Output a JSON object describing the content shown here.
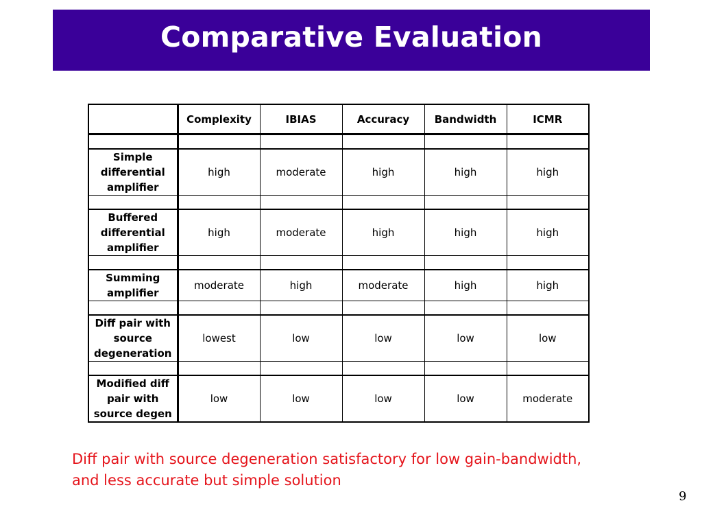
{
  "slide": {
    "title": "Comparative Evaluation",
    "page_number": "9",
    "conclusion_line1": "Diff pair with source degeneration satisfactory for low gain-bandwidth,",
    "conclusion_line2": "and less accurate but simple solution"
  },
  "table": {
    "headers": [
      "",
      "Complexity",
      "IBIAS",
      "Accuracy",
      "Bandwidth",
      "ICMR"
    ],
    "rows": [
      {
        "label_lines": [
          "Simple",
          "differential",
          "amplifier"
        ],
        "values": [
          "high",
          "moderate",
          "high",
          "high",
          "high"
        ]
      },
      {
        "label_lines": [
          "Buffered",
          "differential",
          "amplifier"
        ],
        "values": [
          "high",
          "moderate",
          "high",
          "high",
          "high"
        ]
      },
      {
        "label_lines": [
          "Summing",
          "amplifier"
        ],
        "values": [
          "moderate",
          "high",
          "moderate",
          "high",
          "high"
        ]
      },
      {
        "label_lines": [
          "Diff pair with",
          "source",
          "degeneration"
        ],
        "values": [
          "lowest",
          "low",
          "low",
          "low",
          "low"
        ]
      },
      {
        "label_lines": [
          "Modified diff",
          "pair with",
          "source degen"
        ],
        "values": [
          "low",
          "low",
          "low",
          "low",
          "moderate"
        ]
      }
    ]
  },
  "colors": {
    "title_bar": "#3a0099",
    "title_text": "#ffffff",
    "conclusion_text": "#e5141b"
  }
}
